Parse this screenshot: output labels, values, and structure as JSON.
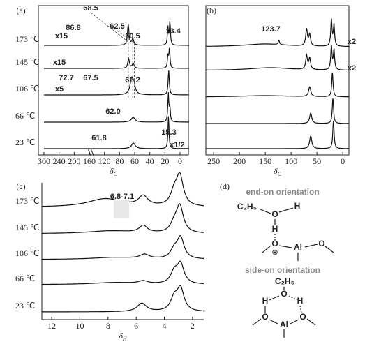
{
  "chart_data": [
    {
      "type": "spectrum",
      "label": "(a)",
      "axis_break": true,
      "xticks": [
        300,
        240,
        200,
        160,
        120,
        80,
        60,
        40,
        20,
        0
      ],
      "xlabel": "δ",
      "xlabel_sub": "C",
      "color": "#111111",
      "series": [
        {
          "name": "173 ℃",
          "peaks": [
            [
              68.5,
              30,
              1.2
            ],
            [
              62.5,
              9,
              1.5
            ],
            [
              16,
              26,
              0.8
            ],
            [
              13.4,
              34,
              0.8
            ]
          ]
        },
        {
          "name": "145 ℃",
          "peaks": [
            [
              68,
              14,
              1.3
            ],
            [
              62,
              7,
              1.5
            ],
            [
              16,
              18,
              0.8
            ],
            [
              14,
              28,
              0.8
            ]
          ]
        },
        {
          "name": "106 ℃",
          "peaks": [
            [
              64,
              22,
              2.5
            ],
            [
              61,
              12,
              2
            ],
            [
              15,
              36,
              0.9
            ]
          ]
        },
        {
          "name": "66 ℃",
          "peaks": [
            [
              62,
              7,
              3
            ],
            [
              15.5,
              40,
              0.8
            ],
            [
              13.5,
              20,
              0.8
            ]
          ]
        },
        {
          "name": "23 ℃",
          "peaks": [
            [
              61.8,
              8,
              3
            ],
            [
              15.3,
              48,
              0.8
            ]
          ]
        }
      ],
      "annotations": [
        {
          "text": "68.5",
          "color": "#8c8c8c"
        },
        {
          "text": "86.8",
          "color": "#333333"
        },
        {
          "text": "62.5",
          "color": "#8c8c8c"
        },
        {
          "text": "60.5",
          "color": "#333333"
        },
        {
          "text": "13.4",
          "color": "#8c8c8c"
        },
        {
          "text": "x15",
          "color": "#333333"
        },
        {
          "text": "x15",
          "color": "#333333"
        },
        {
          "text": "72.7",
          "color": "#8c8c8c"
        },
        {
          "text": "67.5",
          "color": "#8c8c8c"
        },
        {
          "text": "62.2",
          "color": "#8c8c8c"
        },
        {
          "text": "x5",
          "color": "#333333"
        },
        {
          "text": "62.0",
          "color": "#8c8c8c"
        },
        {
          "text": "61.8",
          "color": "#8c8c8c"
        },
        {
          "text": "15.3",
          "color": "#333333"
        },
        {
          "text": "x1/2",
          "color": "#333333"
        }
      ]
    },
    {
      "type": "spectrum",
      "label": "(b)",
      "xlim": [
        265,
        -12
      ],
      "xticks": [
        250,
        200,
        150,
        100,
        50,
        0
      ],
      "xlabel": "δ",
      "xlabel_sub": "C",
      "color": "#111111",
      "series": [
        {
          "peaks": [
            [
              150,
              4,
              50
            ],
            [
              123.7,
              6,
              1.5
            ],
            [
              70,
              24,
              2
            ],
            [
              64,
              16,
              2
            ],
            [
              22,
              38,
              1.5
            ],
            [
              17,
              30,
              1.5
            ]
          ]
        },
        {
          "peaks": [
            [
              140,
              4,
              50
            ],
            [
              70,
              20,
              2
            ],
            [
              64,
              16,
              2
            ],
            [
              22,
              34,
              1.5
            ],
            [
              17,
              28,
              1.5
            ]
          ]
        },
        {
          "peaks": [
            [
              150,
              2,
              60
            ],
            [
              64,
              14,
              2.5
            ],
            [
              20,
              35,
              1.5
            ]
          ]
        },
        {
          "peaks": [
            [
              62,
              15,
              2.5
            ],
            [
              19,
              36,
              1.5
            ]
          ]
        },
        {
          "peaks": [
            [
              62,
              18,
              2.5
            ],
            [
              18,
              40,
              1.5
            ]
          ]
        }
      ],
      "annotations": [
        {
          "text": "123.7",
          "color": "#444444"
        },
        {
          "text": "x2",
          "color": "#333333"
        },
        {
          "text": "x2",
          "color": "#333333"
        }
      ]
    },
    {
      "type": "spectrum",
      "label": "(c)",
      "xlim": [
        12.7,
        1.2
      ],
      "xticks": [
        12,
        10,
        8,
        6,
        4,
        2
      ],
      "xlabel": "δ",
      "xlabel_sub": "H",
      "color": "#111111",
      "series": [
        {
          "name": "173 ℃",
          "peaks": [
            [
              8.2,
              12,
              1.5
            ],
            [
              5.5,
              14,
              0.4
            ],
            [
              3.3,
              18,
              0.3
            ],
            [
              2.9,
              42,
              0.3
            ]
          ]
        },
        {
          "name": "145 ℃",
          "peaks": [
            [
              7.8,
              4,
              2
            ],
            [
              5.5,
              10,
              0.35
            ],
            [
              3.3,
              12,
              0.3
            ],
            [
              2.9,
              38,
              0.3
            ]
          ]
        },
        {
          "name": "106 ℃",
          "peaks": [
            [
              7.5,
              3,
              2
            ],
            [
              5.4,
              6,
              0.4
            ],
            [
              3.3,
              12,
              0.3
            ],
            [
              2.85,
              30,
              0.3
            ]
          ]
        },
        {
          "name": "66 ℃",
          "peaks": [
            [
              7.5,
              3,
              2
            ],
            [
              5.5,
              4,
              0.4
            ],
            [
              3.3,
              16,
              0.3
            ],
            [
              2.85,
              28,
              0.3
            ]
          ]
        },
        {
          "name": "23 ℃",
          "peaks": [
            [
              5.6,
              12,
              0.4
            ],
            [
              3.3,
              18,
              0.3
            ],
            [
              2.85,
              32,
              0.3
            ]
          ]
        }
      ],
      "annotations": [
        {
          "text": "6.8-7.1",
          "color": "#8c8c8c"
        }
      ]
    }
  ],
  "diagram": {
    "label": "(d)",
    "end_on": {
      "title": "end-on orientation",
      "ethyl": "C₂H₅",
      "atoms": [
        "O",
        "H",
        "H",
        "O",
        "⊕",
        "Al",
        "O"
      ]
    },
    "side_on": {
      "title": "side-on orientation",
      "ethyl": "C₂H₅",
      "atoms": [
        "O",
        "H",
        "H",
        "O",
        "O",
        "Al"
      ]
    }
  }
}
